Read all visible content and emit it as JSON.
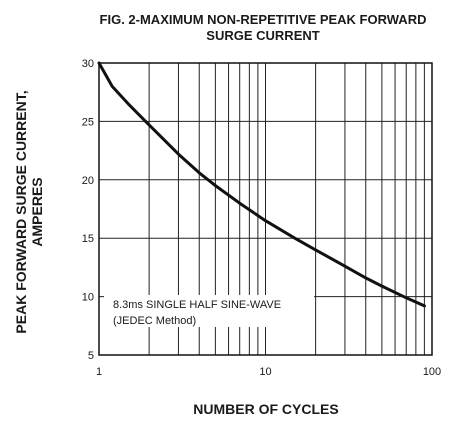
{
  "chart_data": {
    "type": "line",
    "title_line1": "FIG. 2-MAXIMUM NON-REPETITIVE PEAK FORWARD",
    "title_line2": "SURGE CURRENT",
    "xlabel": "NUMBER OF CYCLES",
    "ylabel_line1": "PEAK  FORWARD SURGE CURRENT,",
    "ylabel_line2": "AMPERES",
    "x_scale": "log",
    "xlim": [
      1,
      100
    ],
    "ylim": [
      5,
      30
    ],
    "x_ticks": [
      "1",
      "10",
      "100"
    ],
    "y_ticks": [
      "5",
      "10",
      "15",
      "20",
      "25",
      "30"
    ],
    "grid": true,
    "annotation_line1": "8.3ms SINGLE HALF SINE-WAVE",
    "annotation_line2": "(JEDEC Method)",
    "series": [
      {
        "x": [
          1,
          1.2,
          1.5,
          2,
          3,
          4,
          5,
          7,
          10,
          15,
          20,
          30,
          40,
          50,
          70,
          90
        ],
        "y": [
          30,
          28,
          26.5,
          24.7,
          22.2,
          20.6,
          19.5,
          18,
          16.5,
          15,
          14,
          12.6,
          11.6,
          10.9,
          9.9,
          9.2
        ]
      }
    ],
    "line_color": "#111111",
    "grid_color": "#222222"
  }
}
